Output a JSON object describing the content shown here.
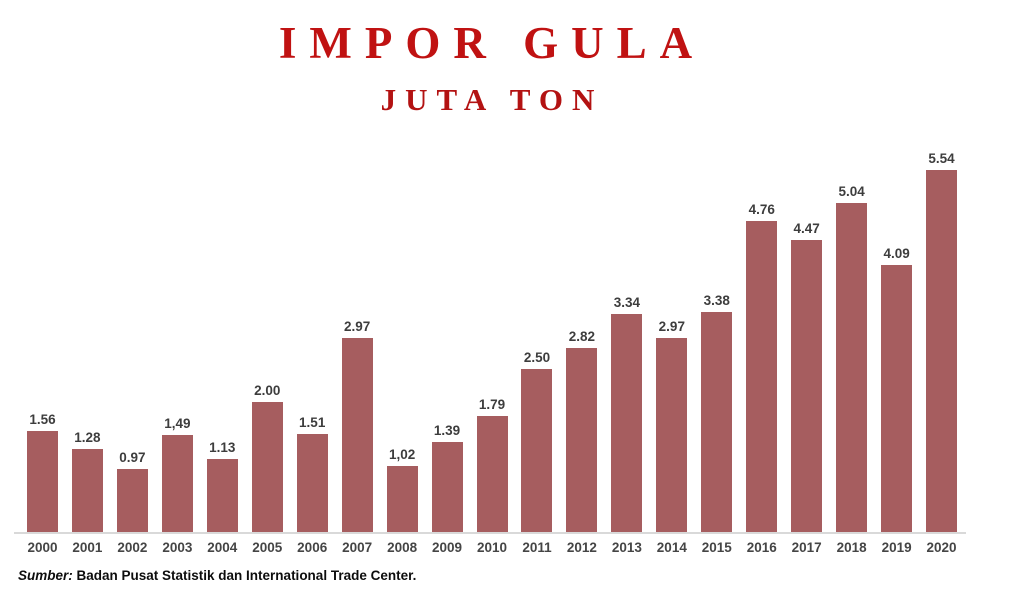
{
  "header": {
    "title": "IMPOR GULA",
    "subtitle": "JUTA TON",
    "title_color": "#c01212"
  },
  "source": {
    "prefix": "Sumber:",
    "text": " Badan Pusat Statistik dan International Trade Center."
  },
  "chart_data": {
    "type": "bar",
    "title": "IMPOR GULA",
    "subtitle": "JUTA TON",
    "xlabel": "",
    "ylabel": "",
    "categories": [
      "2000",
      "2001",
      "2002",
      "2003",
      "2004",
      "2005",
      "2006",
      "2007",
      "2008",
      "2009",
      "2010",
      "2011",
      "2012",
      "2013",
      "2014",
      "2015",
      "2016",
      "2017",
      "2018",
      "2019",
      "2020"
    ],
    "values": [
      1.56,
      1.28,
      0.97,
      1.49,
      1.13,
      2.0,
      1.51,
      2.97,
      1.02,
      1.39,
      1.79,
      2.5,
      2.82,
      3.34,
      2.97,
      3.38,
      4.76,
      4.47,
      5.04,
      4.09,
      5.54
    ],
    "value_labels": [
      "1.56",
      "1.28",
      "0.97",
      "1,49",
      "1.13",
      "2.00",
      "1.51",
      "2.97",
      "1,02",
      "1.39",
      "1.79",
      "2.50",
      "2.82",
      "3.34",
      "2.97",
      "3.38",
      "4.76",
      "4.47",
      "5.04",
      "4.09",
      "5.54"
    ],
    "ylim": [
      0,
      5.54
    ],
    "grid": false,
    "legend": false,
    "bar_color": "#a65d5f",
    "data_label_color": "#3d3d3d",
    "tick_label_color": "#454545",
    "axis_line_color": "#d9d9d9"
  }
}
